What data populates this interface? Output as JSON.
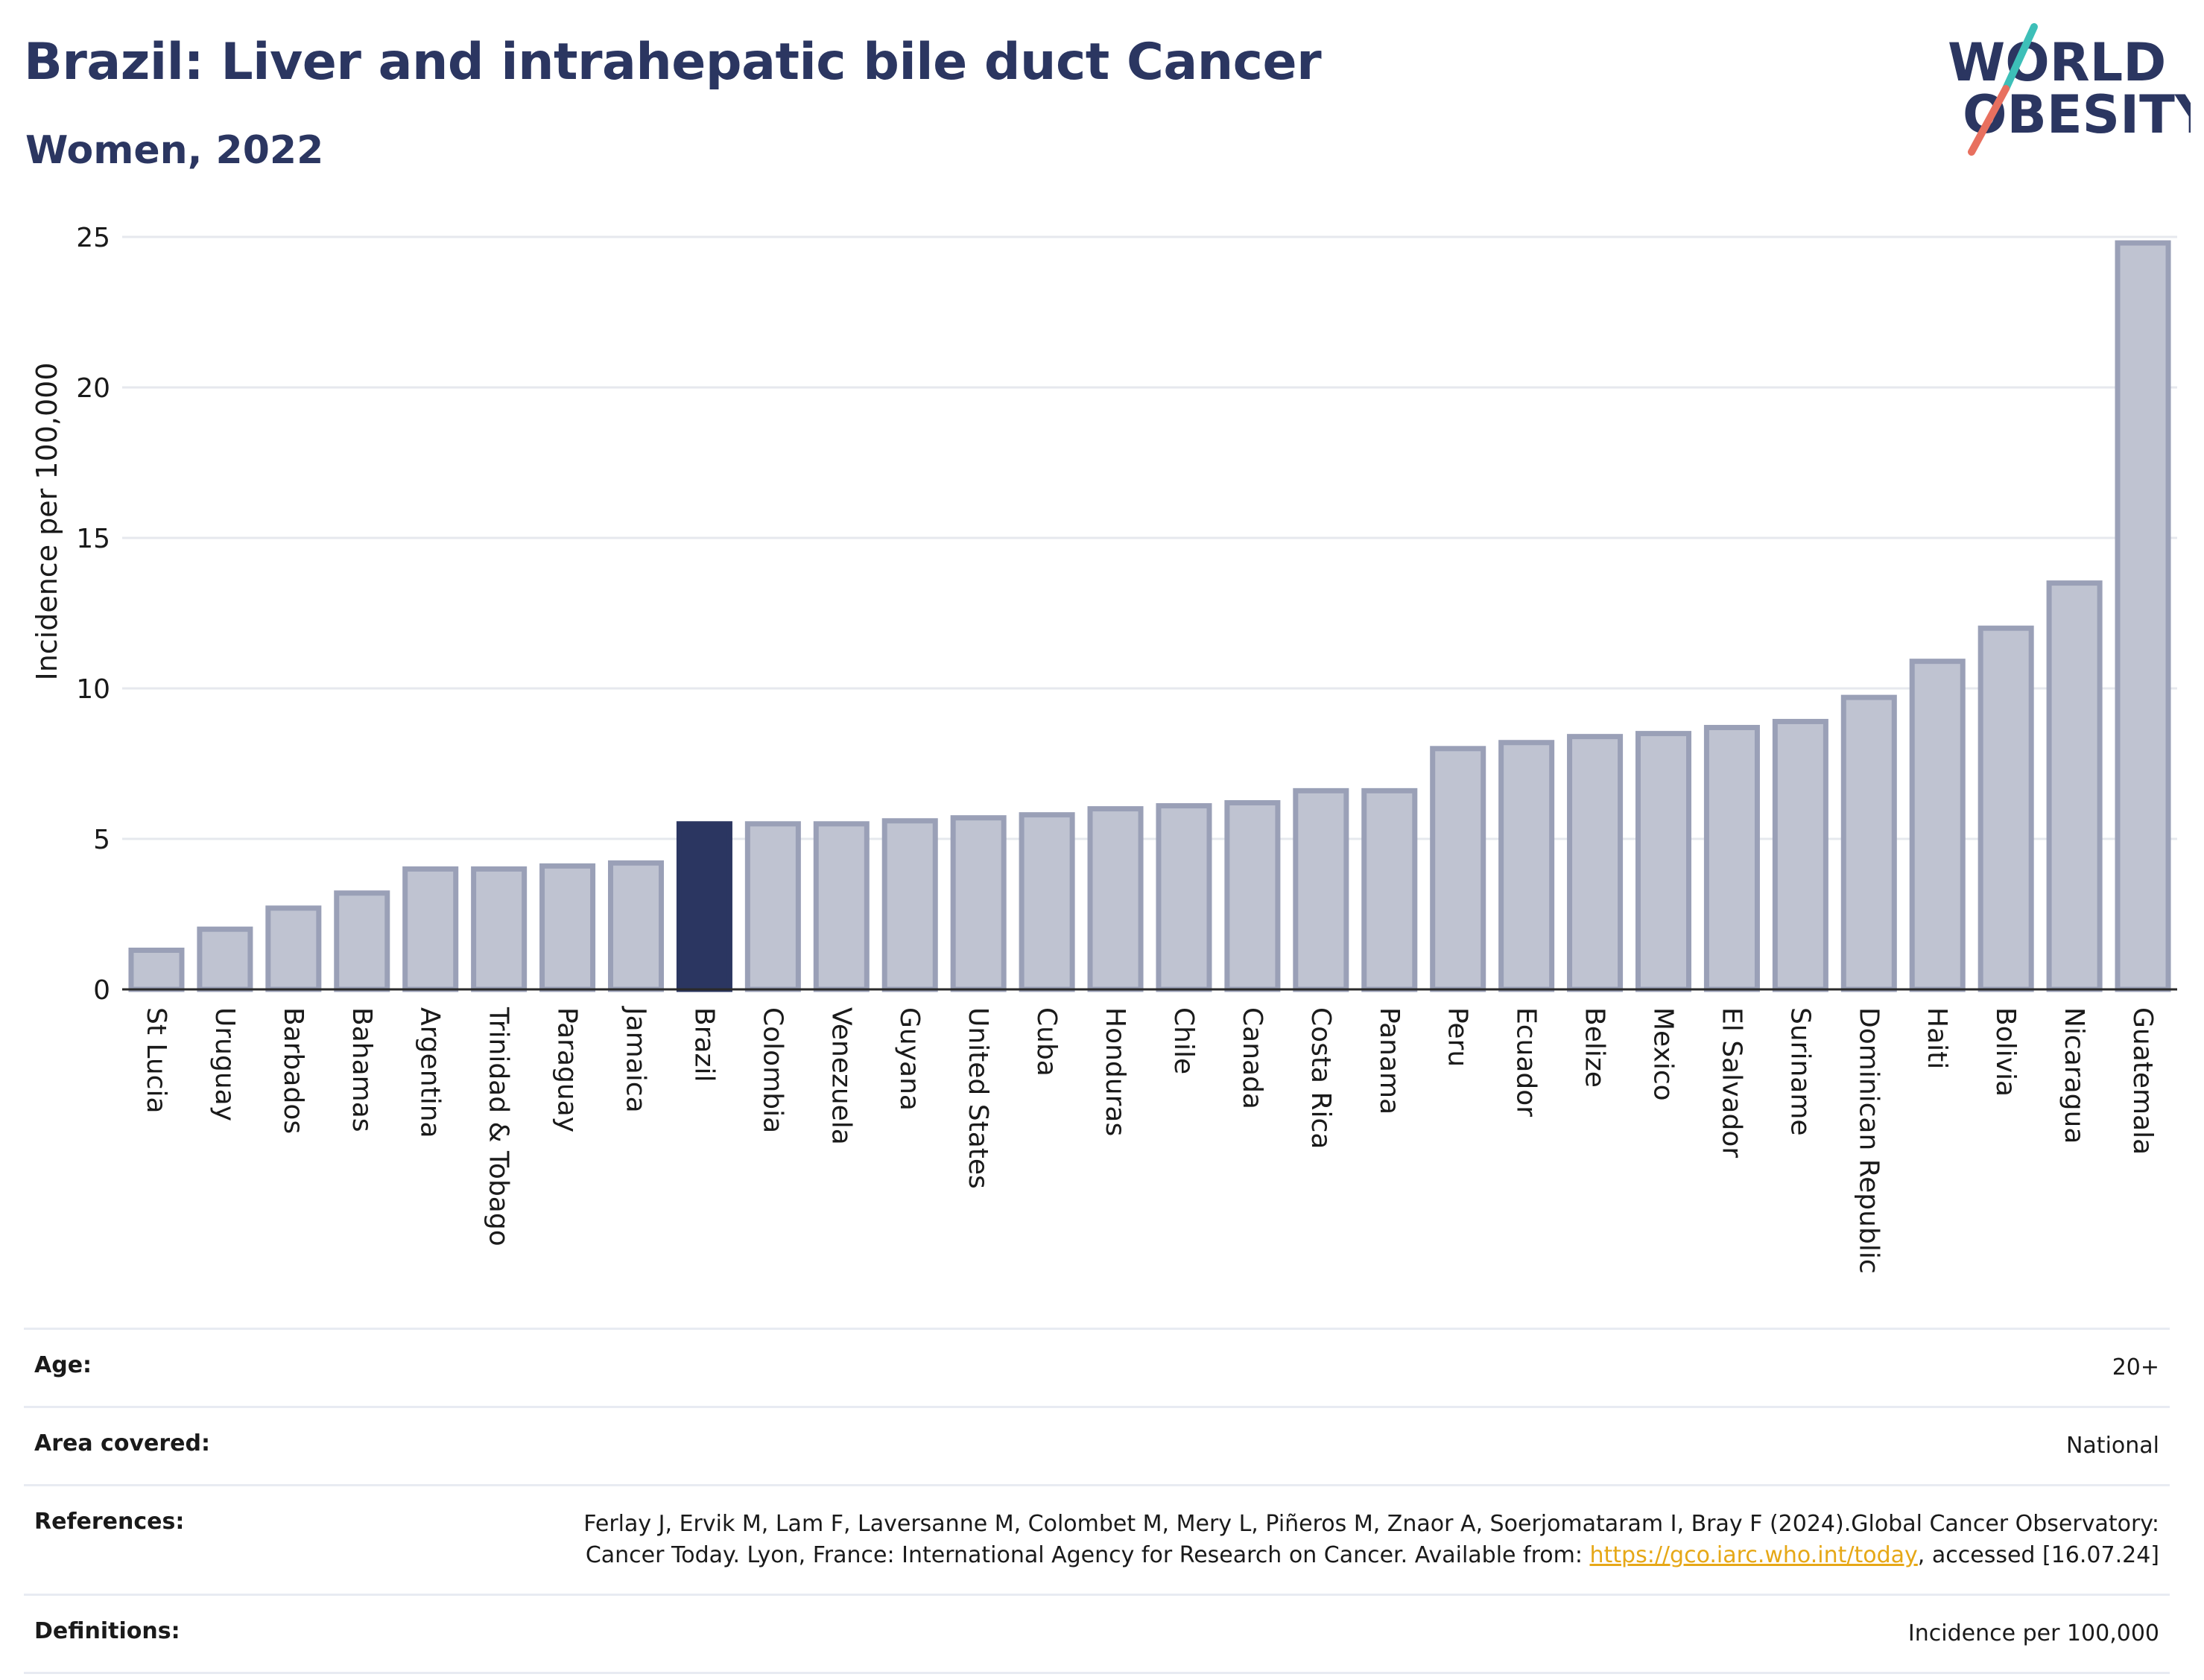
{
  "header": {
    "title": "Brazil: Liver and intrahepatic bile duct Cancer",
    "subtitle": "Women, 2022"
  },
  "logo": {
    "line1": "WORLD",
    "line2": "OBESITY",
    "slash_colors": [
      "#3dbfb8",
      "#e8705f"
    ],
    "text_color": "#2b3661"
  },
  "colors": {
    "highlight": "#2b3661",
    "bar_fill": "#bfc3d1",
    "bar_stroke": "#9aa0b7",
    "grid": "#e6e8ee",
    "title": "#2b3661"
  },
  "chart_data": {
    "type": "bar",
    "title": "Brazil: Liver and intrahepatic bile duct Cancer",
    "subtitle": "Women, 2022",
    "ylabel": "Incidence per 100,000",
    "xlabel": "",
    "ylim": [
      0,
      25
    ],
    "yticks": [
      0,
      5,
      10,
      15,
      20,
      25
    ],
    "grid": true,
    "highlight": "Brazil",
    "categories": [
      "St Lucia",
      "Uruguay",
      "Barbados",
      "Bahamas",
      "Argentina",
      "Trinidad & Tobago",
      "Paraguay",
      "Jamaica",
      "Brazil",
      "Colombia",
      "Venezuela",
      "Guyana",
      "United States",
      "Cuba",
      "Honduras",
      "Chile",
      "Canada",
      "Costa Rica",
      "Panama",
      "Peru",
      "Ecuador",
      "Belize",
      "Mexico",
      "El Salvador",
      "Suriname",
      "Dominican Republic",
      "Haiti",
      "Bolivia",
      "Nicaragua",
      "Guatemala"
    ],
    "values": [
      1.3,
      2.0,
      2.7,
      3.2,
      4.0,
      4.0,
      4.1,
      4.2,
      5.5,
      5.5,
      5.5,
      5.6,
      5.7,
      5.8,
      6.0,
      6.1,
      6.2,
      6.6,
      6.6,
      8.0,
      8.2,
      8.4,
      8.5,
      8.7,
      8.9,
      9.7,
      10.9,
      12.0,
      13.5,
      24.8
    ]
  },
  "meta": [
    {
      "label": "Age:",
      "value": "20+"
    },
    {
      "label": "Area covered:",
      "value": "National"
    },
    {
      "label": "References:",
      "value_before": "Ferlay J, Ervik M, Lam F, Laversanne M, Colombet M, Mery L, Piñeros M, Znaor A, Soerjomataram I, Bray F (2024).Global Cancer Observatory: Cancer Today. Lyon, France: International Agency for Research on Cancer. Available from: ",
      "link": "https://gco.iarc.who.int/today",
      "value_after": ", accessed [16.07.24]"
    },
    {
      "label": "Definitions:",
      "value": "Incidence per 100,000"
    }
  ]
}
